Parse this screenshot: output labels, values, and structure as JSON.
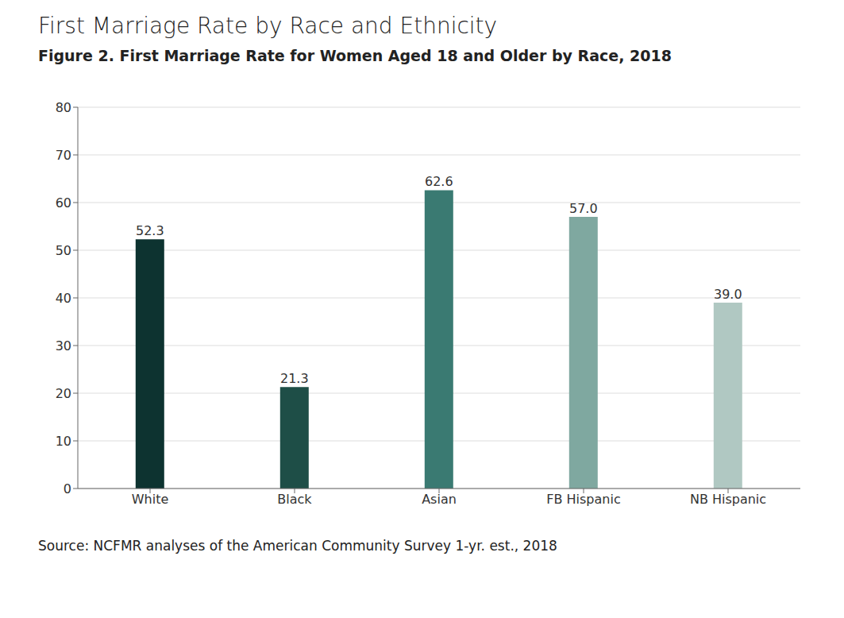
{
  "chart_data": {
    "type": "bar",
    "title": "First Marriage Rate by Race and Ethnicity",
    "subtitle": "Figure 2. First Marriage Rate for Women Aged 18 and Older by Race, 2018",
    "source": "Source: NCFMR analyses of the American Community Survey 1-yr. est., 2018",
    "categories": [
      "White",
      "Black",
      "Asian",
      "FB Hispanic",
      "NB Hispanic"
    ],
    "values": [
      52.3,
      21.3,
      62.6,
      57.0,
      39.0
    ],
    "value_labels": [
      "52.3",
      "21.3",
      "62.6",
      "57.0",
      "39.0"
    ],
    "colors": [
      "#0d3330",
      "#1e4e47",
      "#3a7a72",
      "#7fa8a0",
      "#b0c8c2"
    ],
    "ylim": [
      0,
      80
    ],
    "yticks": [
      0,
      10,
      20,
      30,
      40,
      50,
      60,
      70,
      80
    ],
    "grid": true,
    "data_labels": true
  }
}
